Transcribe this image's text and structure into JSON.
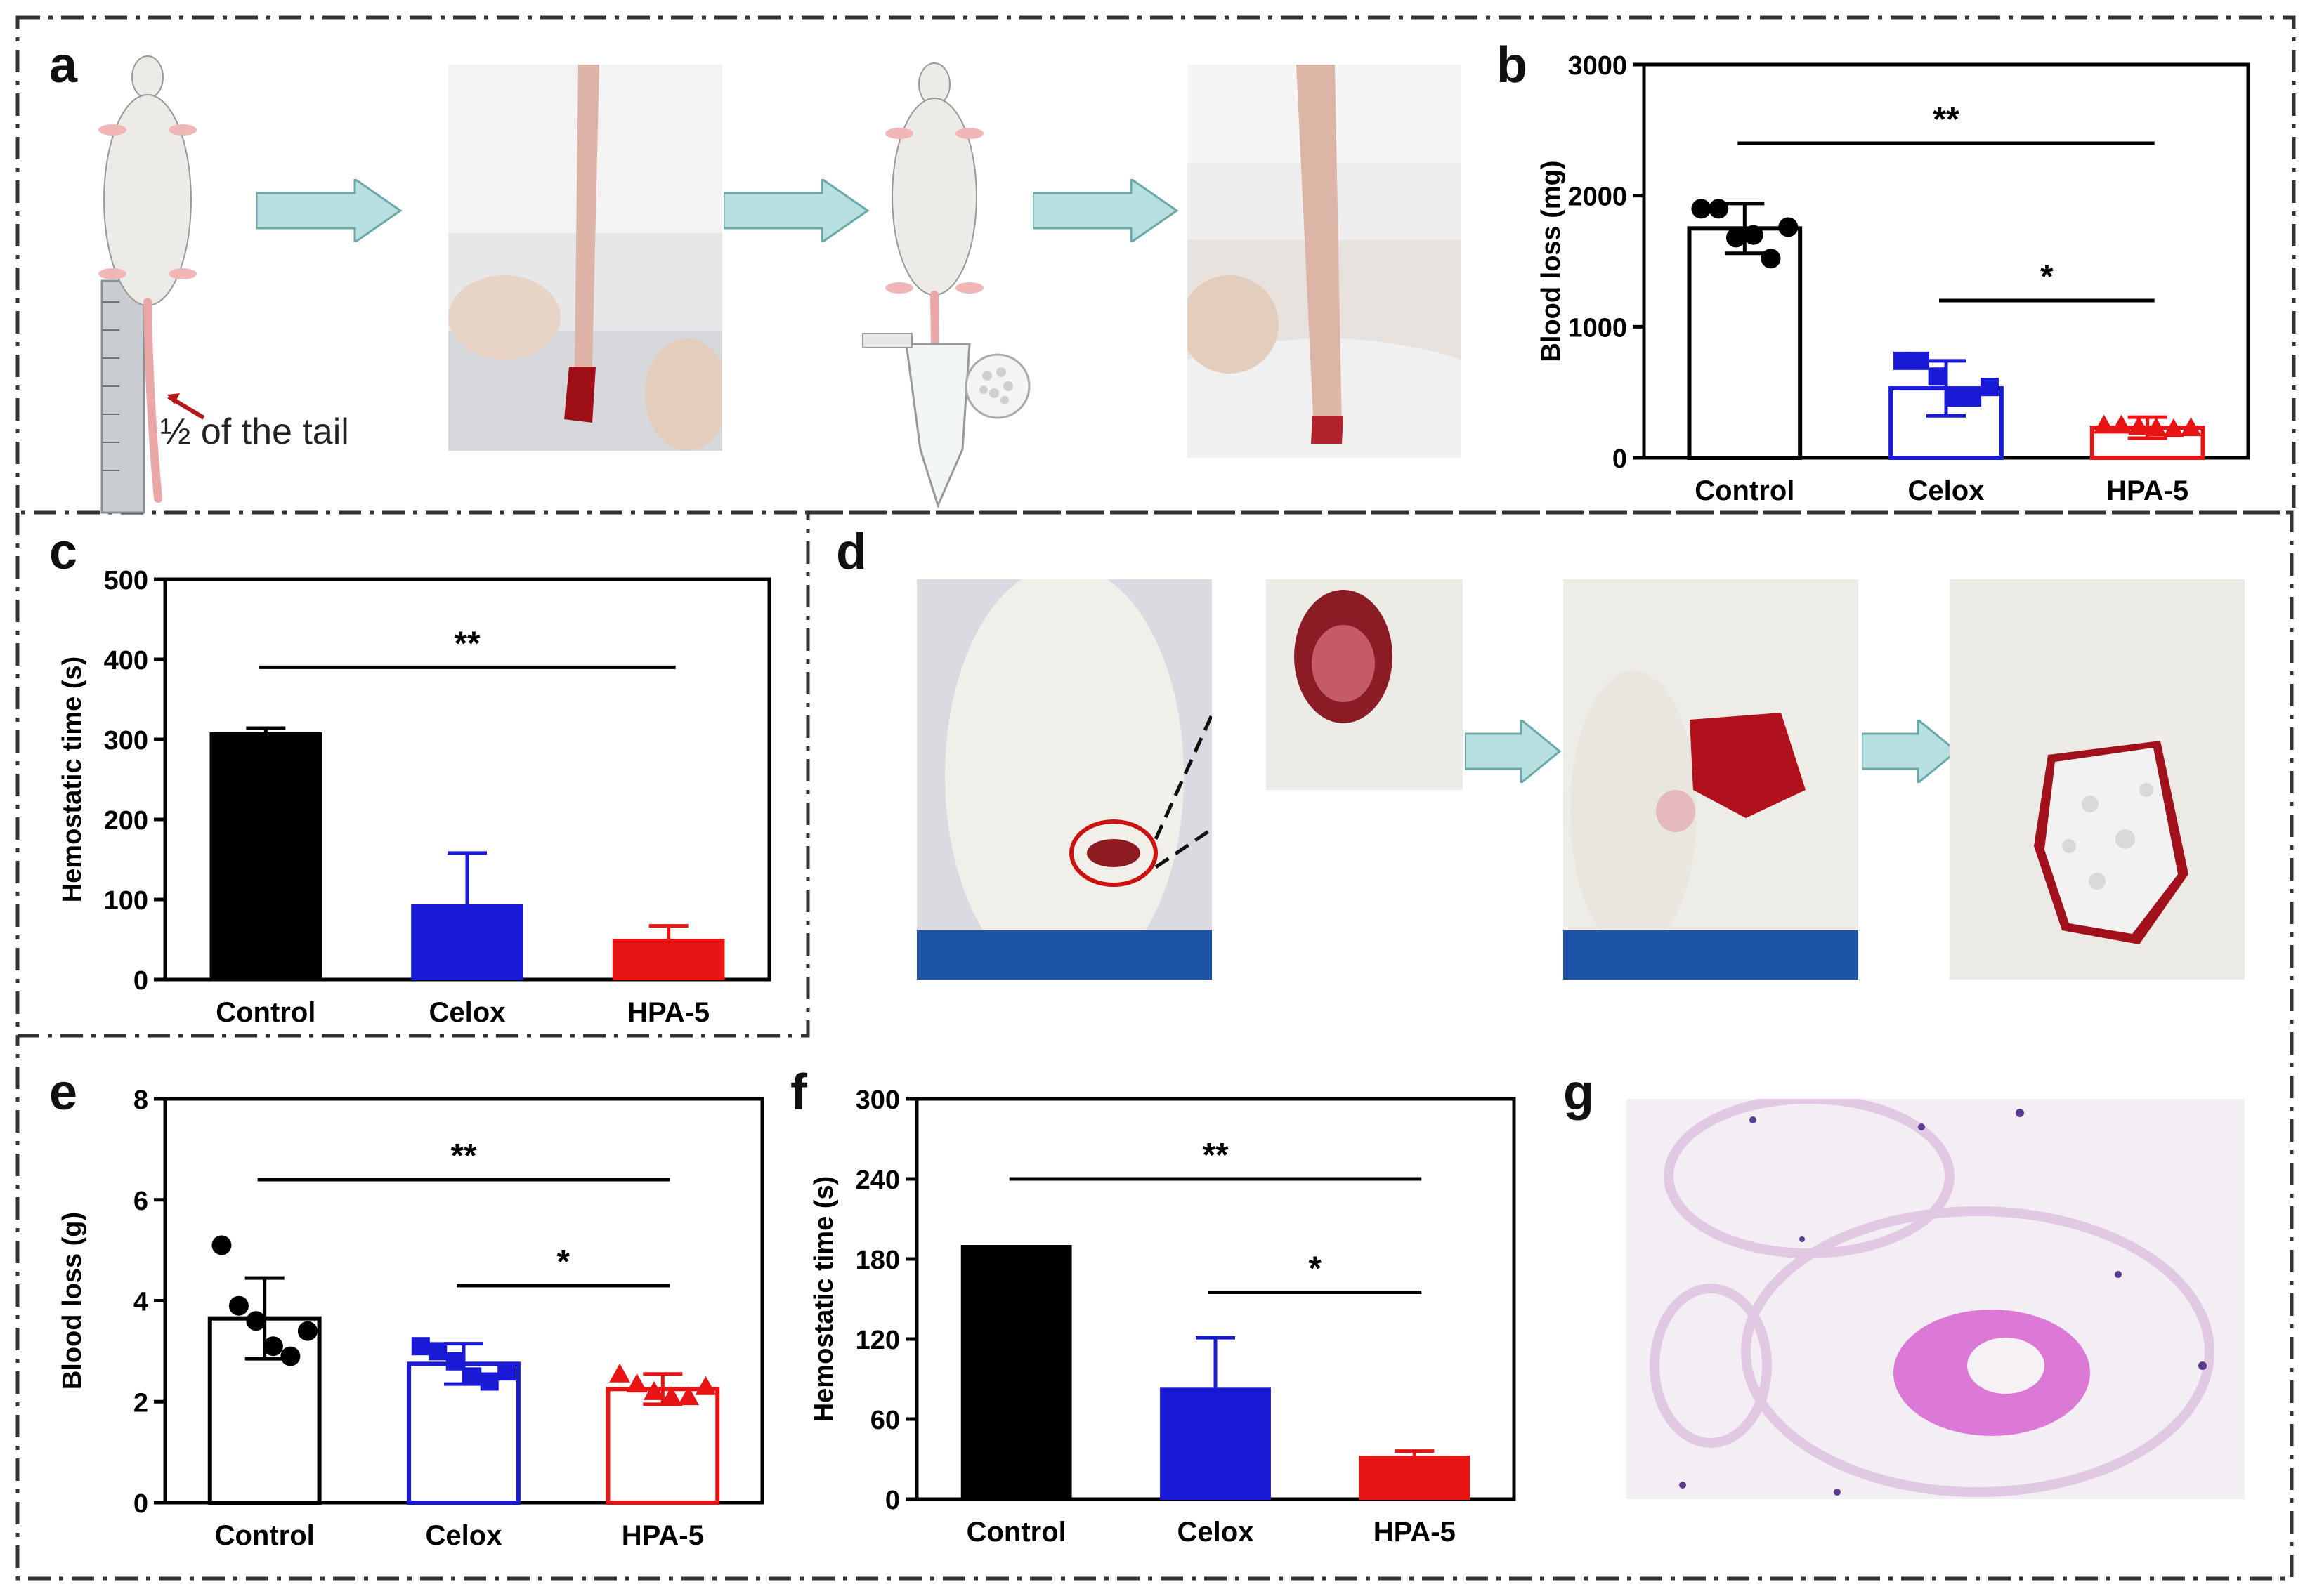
{
  "panel_labels": {
    "a": "a",
    "b": "b",
    "c": "c",
    "d": "d",
    "e": "e",
    "f": "f",
    "g": "g"
  },
  "panel_a": {
    "tail_caption": "½ of the tail"
  },
  "colors": {
    "control": "#000000",
    "celox": "#1a1ad6",
    "hpa": "#e81414",
    "arrow": "#b8e0e0",
    "wound": "#9e0f18"
  },
  "chart_data": [
    {
      "id": "b",
      "type": "bar",
      "style": "outline-with-points",
      "categories": [
        "Control",
        "Celox",
        "HPA-5"
      ],
      "values": [
        1750,
        530,
        230
      ],
      "errors": [
        190,
        210,
        80
      ],
      "points": [
        [
          1900,
          1900,
          1680,
          1700,
          1520,
          1760
        ],
        [
          740,
          740,
          620,
          460,
          460,
          540
        ],
        [
          250,
          250,
          240,
          230,
          220,
          230
        ]
      ],
      "markers": [
        "circle",
        "square",
        "triangle"
      ],
      "ylabel": "Blood loss (mg)",
      "ylim": [
        0,
        3000
      ],
      "yticks": [
        0,
        1000,
        2000,
        3000
      ],
      "significance": [
        {
          "from": 0,
          "to": 2,
          "label": "**",
          "y": 2400
        },
        {
          "from": 1,
          "to": 2,
          "label": "*",
          "y": 1200
        }
      ]
    },
    {
      "id": "c",
      "type": "bar",
      "style": "filled",
      "categories": [
        "Control",
        "Celox",
        "HPA-5"
      ],
      "values": [
        308,
        93,
        50
      ],
      "errors": [
        6,
        65,
        17
      ],
      "ylabel": "Hemostatic time (s)",
      "ylim": [
        0,
        500
      ],
      "yticks": [
        0,
        100,
        200,
        300,
        400,
        500
      ],
      "significance": [
        {
          "from": 0,
          "to": 2,
          "label": "**",
          "y": 390
        }
      ]
    },
    {
      "id": "e",
      "type": "bar",
      "style": "outline-with-points",
      "categories": [
        "Control",
        "Celox",
        "HPA-5"
      ],
      "values": [
        3.65,
        2.75,
        2.25
      ],
      "errors": [
        0.8,
        0.4,
        0.3
      ],
      "points": [
        [
          5.1,
          3.9,
          3.6,
          3.1,
          2.9,
          3.4
        ],
        [
          3.1,
          3.0,
          2.8,
          2.5,
          2.4,
          2.6
        ],
        [
          2.55,
          2.35,
          2.2,
          2.1,
          2.1,
          2.3
        ]
      ],
      "markers": [
        "circle",
        "square",
        "triangle"
      ],
      "ylabel": "Blood loss (g)",
      "ylim": [
        0,
        8
      ],
      "yticks": [
        0,
        2,
        4,
        6,
        8
      ],
      "significance": [
        {
          "from": 0,
          "to": 2,
          "label": "**",
          "y": 6.4
        },
        {
          "from": 1,
          "to": 2,
          "label": "*",
          "y": 4.3
        }
      ]
    },
    {
      "id": "f",
      "type": "bar",
      "style": "filled",
      "categories": [
        "Control",
        "Celox",
        "HPA-5"
      ],
      "values": [
        190,
        83,
        32
      ],
      "errors": [
        0,
        38,
        4
      ],
      "ylabel": "Hemostatic time (s)",
      "ylim": [
        0,
        300
      ],
      "yticks": [
        0,
        60,
        120,
        180,
        240,
        300
      ],
      "significance": [
        {
          "from": 0,
          "to": 2,
          "label": "**",
          "y": 240
        },
        {
          "from": 1,
          "to": 2,
          "label": "*",
          "y": 155
        }
      ]
    }
  ]
}
